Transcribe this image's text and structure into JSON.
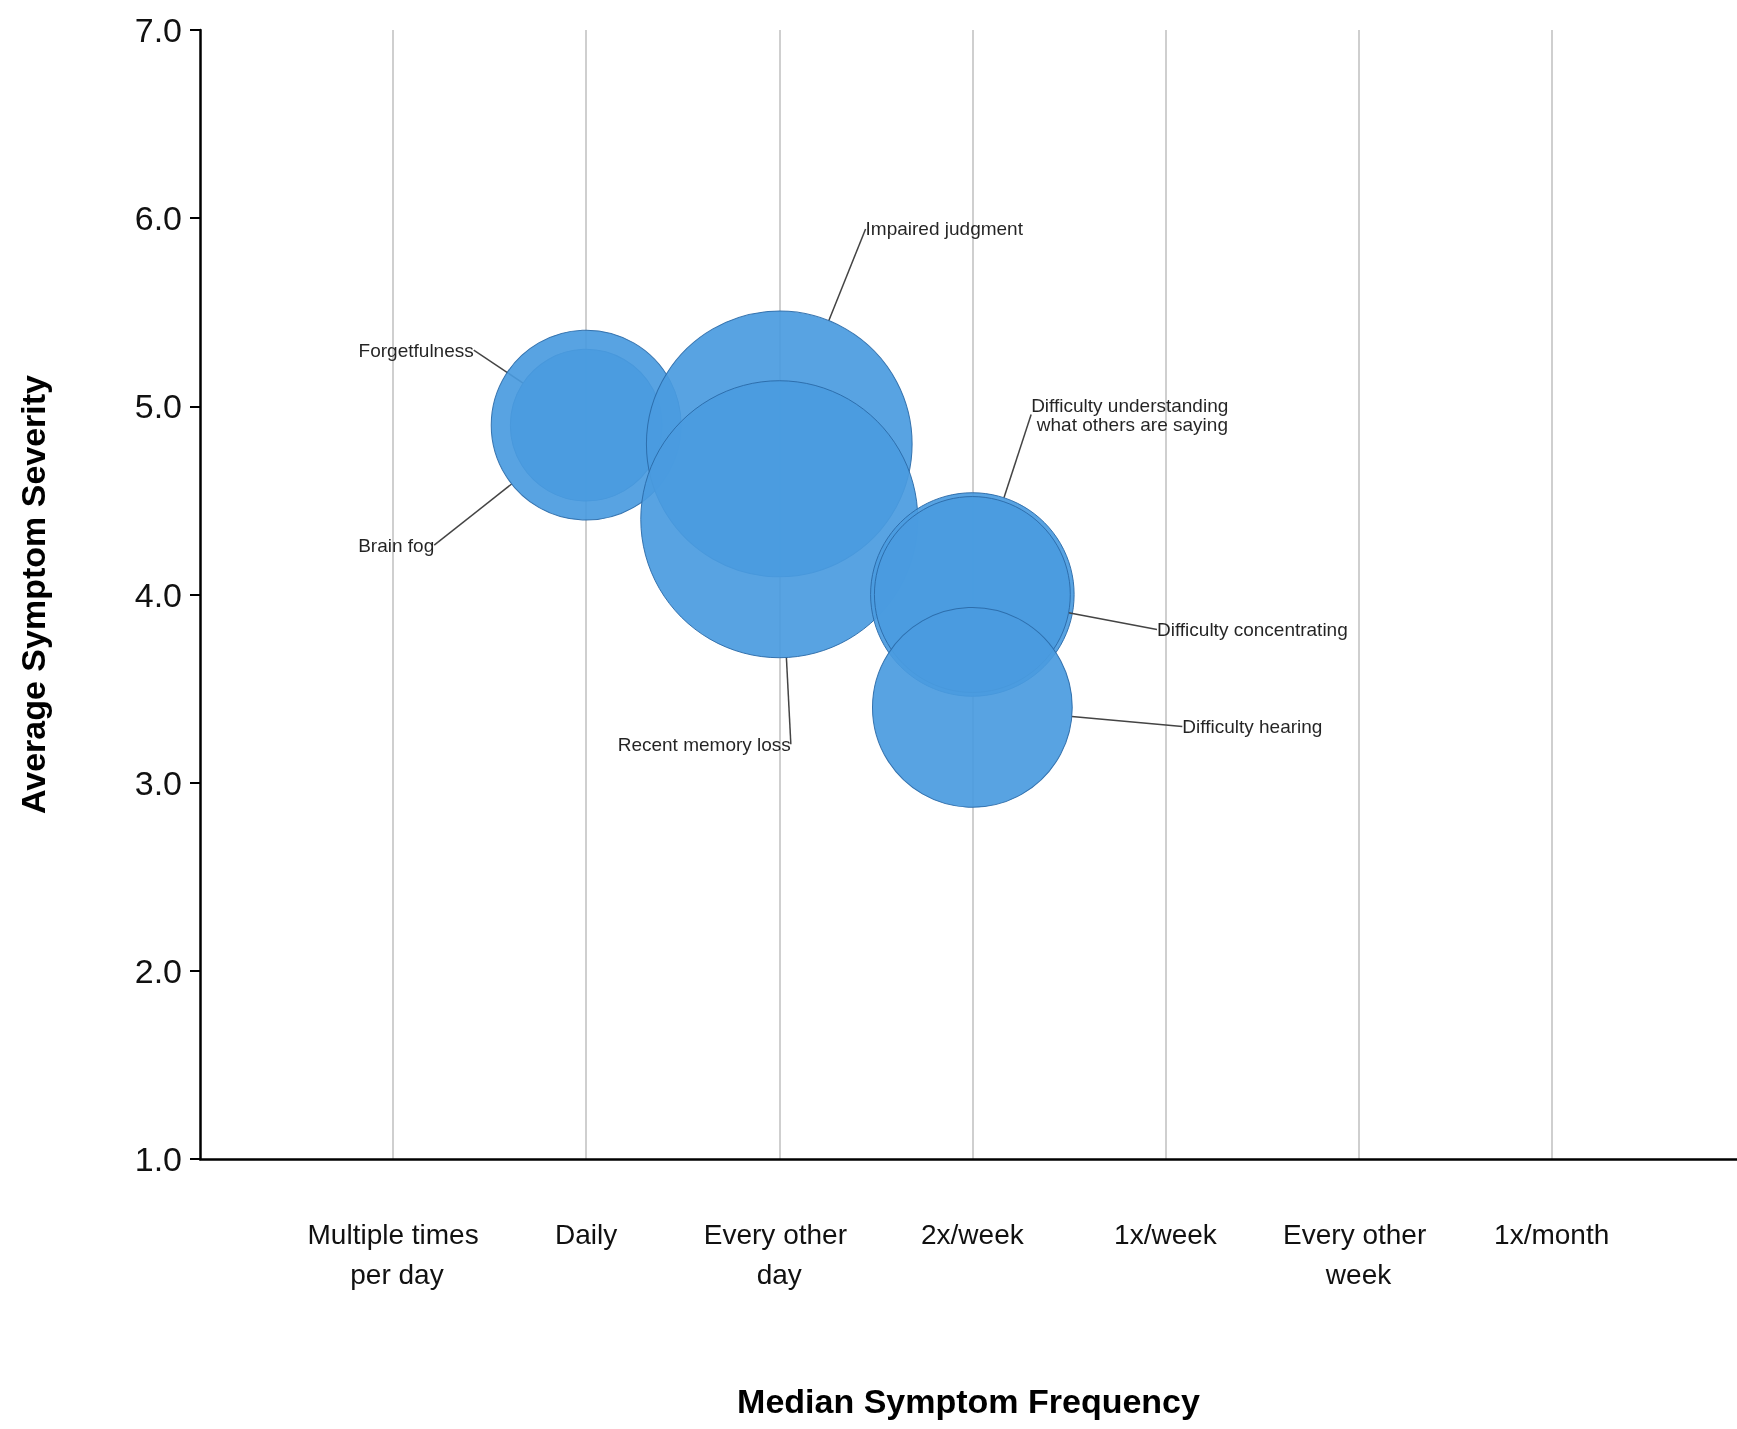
{
  "chart_data": {
    "type": "bubble",
    "xlabel": "Median Symptom Frequency",
    "ylabel": "Average Symptom Severity",
    "categories": [
      "Multiple times per day",
      "Daily",
      "Every other day",
      "2x/week",
      "1x/week",
      "Every other week",
      "1x/month"
    ],
    "ylim": [
      1,
      7
    ],
    "yticks": [
      {
        "value": 1,
        "label": "1.0"
      },
      {
        "value": 2,
        "label": "2.0"
      },
      {
        "value": 3,
        "label": "3.0"
      },
      {
        "value": 4,
        "label": "4.0"
      },
      {
        "value": 5,
        "label": "5.0"
      },
      {
        "value": 6,
        "label": "6.0"
      },
      {
        "value": 7,
        "label": "7.0"
      }
    ],
    "grid": "x",
    "legend": false,
    "series": [
      {
        "name": "Forgetfulness",
        "color": "#4a9be0",
        "x": [
          "Daily"
        ],
        "values": [
          4.9
        ],
        "sizes": [
          0.3
        ]
      },
      {
        "name": "Brain fog",
        "color": "#4a9be0",
        "x": [
          "Daily"
        ],
        "values": [
          4.9
        ],
        "sizes": [
          0.47
        ]
      },
      {
        "name": "Impaired judgment",
        "color": "#4a9be0",
        "x": [
          "Every other day"
        ],
        "values": [
          4.8
        ],
        "sizes": [
          0.92
        ]
      },
      {
        "name": "Recent memory loss",
        "color": "#4a9be0",
        "x": [
          "Every other day"
        ],
        "values": [
          4.4
        ],
        "sizes": [
          1
        ]
      },
      {
        "name": "Difficulty understanding what others are saying",
        "color": "#4a9be0",
        "x": [
          "2x/week"
        ],
        "values": [
          4.0
        ],
        "sizes": [
          0.54
        ]
      },
      {
        "name": "Difficulty concentrating",
        "color": "#4a9be0",
        "x": [
          "2x/week"
        ],
        "values": [
          4.0
        ],
        "sizes": [
          0.5
        ]
      },
      {
        "name": "Difficulty hearing",
        "color": "#4a9be0",
        "x": [
          "2x/week"
        ],
        "values": [
          3.4
        ],
        "sizes": [
          0.52
        ]
      }
    ]
  }
}
